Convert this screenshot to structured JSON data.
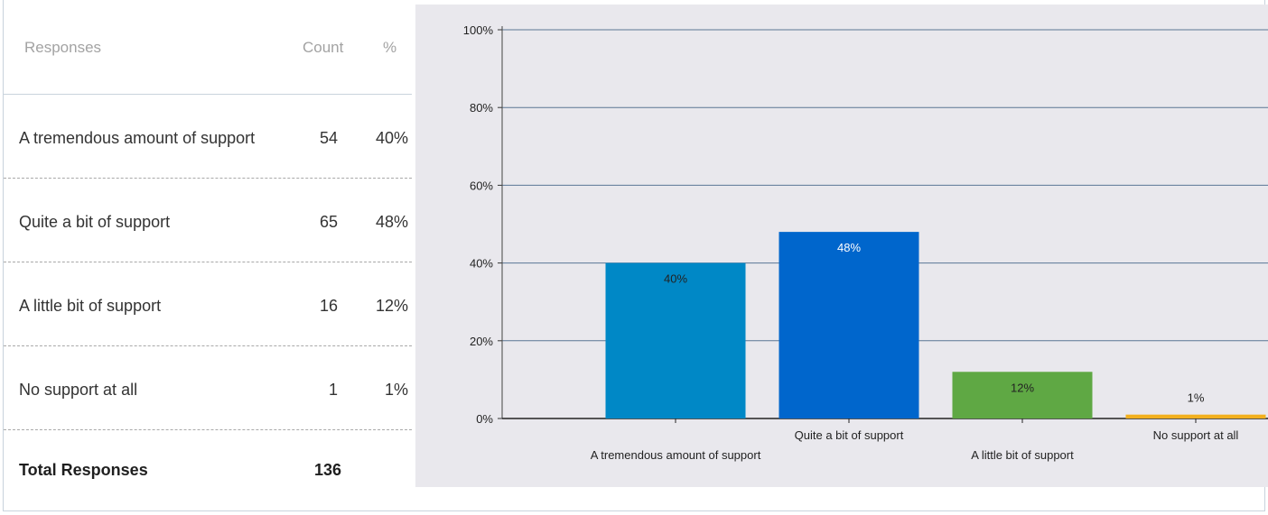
{
  "table": {
    "headers": {
      "responses": "Responses",
      "count": "Count",
      "percent": "%"
    },
    "rows": [
      {
        "label": "A tremendous amount of support",
        "count": "54",
        "percent": "40%"
      },
      {
        "label": "Quite a bit of support",
        "count": "65",
        "percent": "48%"
      },
      {
        "label": "A little bit of support",
        "count": "16",
        "percent": "12%"
      },
      {
        "label": "No support at all",
        "count": "1",
        "percent": "1%"
      }
    ],
    "total": {
      "label": "Total Responses",
      "count": "136"
    }
  },
  "chart_data": {
    "type": "bar",
    "categories": [
      "A tremendous amount of support",
      "Quite a bit of support",
      "A little bit of support",
      "No support at all"
    ],
    "values": [
      40,
      48,
      12,
      1
    ],
    "data_labels": [
      "40%",
      "48%",
      "12%",
      "1%"
    ],
    "y_ticks": [
      "0%",
      "20%",
      "40%",
      "60%",
      "80%",
      "100%"
    ],
    "ylim": [
      0,
      100
    ],
    "grid": true,
    "colors": [
      "#0088c6",
      "#0066cc",
      "#5fa844",
      "#f2b01e"
    ],
    "grid_color": "#5a7694",
    "background": "#e9e8ed"
  }
}
